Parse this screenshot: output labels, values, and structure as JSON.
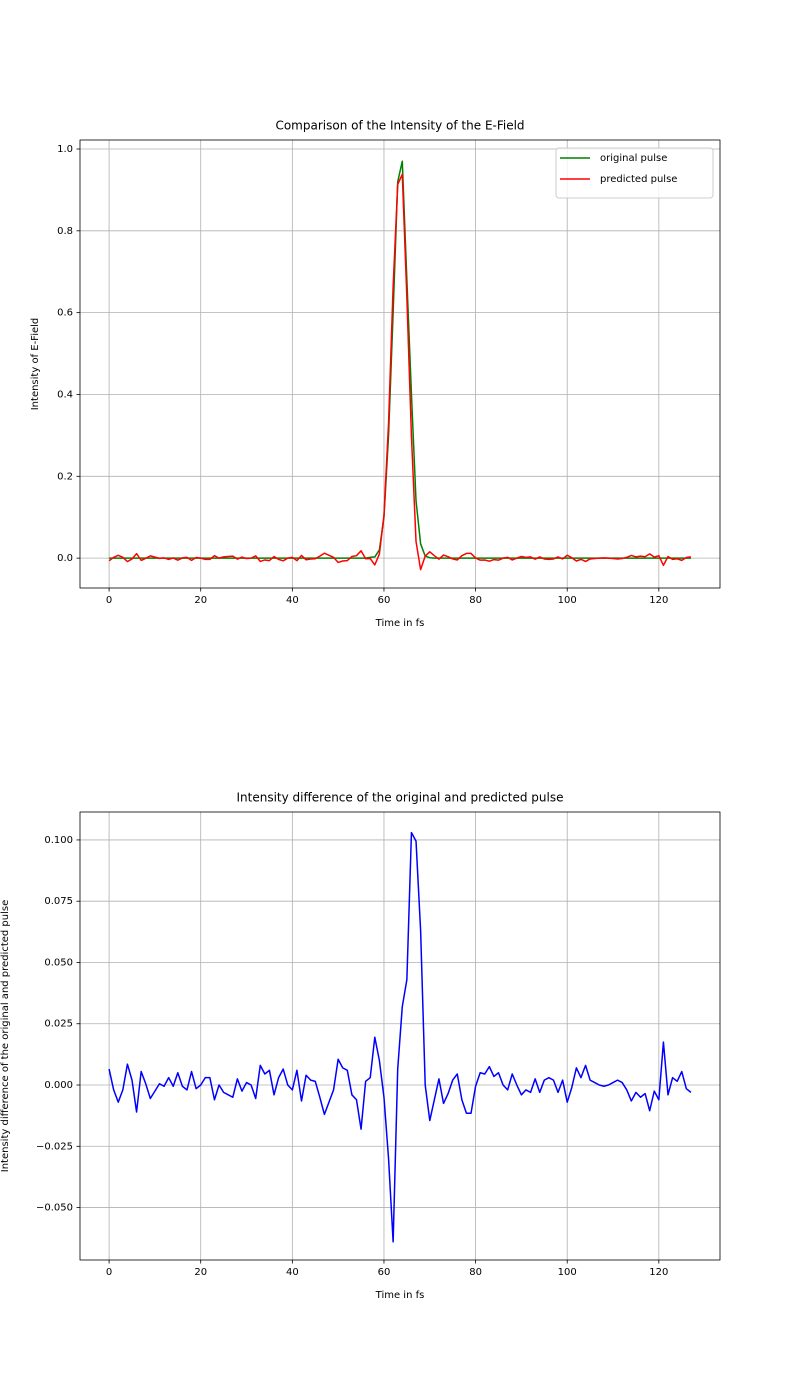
{
  "chart_data": [
    {
      "type": "line",
      "title": "Comparison of the Intensity of the E-Field",
      "xlabel": "Time in fs",
      "ylabel": "Intensity of E-Field",
      "x": [
        0,
        1,
        2,
        3,
        4,
        5,
        6,
        7,
        8,
        9,
        10,
        11,
        12,
        13,
        14,
        15,
        16,
        17,
        18,
        19,
        20,
        21,
        22,
        23,
        24,
        25,
        26,
        27,
        28,
        29,
        30,
        31,
        32,
        33,
        34,
        35,
        36,
        37,
        38,
        39,
        40,
        41,
        42,
        43,
        44,
        45,
        46,
        47,
        48,
        49,
        50,
        51,
        52,
        53,
        54,
        55,
        56,
        57,
        58,
        59,
        60,
        61,
        62,
        63,
        64,
        65,
        66,
        67,
        68,
        69,
        70,
        71,
        72,
        73,
        74,
        75,
        76,
        77,
        78,
        79,
        80,
        81,
        82,
        83,
        84,
        85,
        86,
        87,
        88,
        89,
        90,
        91,
        92,
        93,
        94,
        95,
        96,
        97,
        98,
        99,
        100,
        101,
        102,
        103,
        104,
        105,
        106,
        107,
        108,
        109,
        110,
        111,
        112,
        113,
        114,
        115,
        116,
        117,
        118,
        119,
        120,
        121,
        122,
        123,
        124,
        125,
        126,
        127
      ],
      "series": [
        {
          "name": "original pulse",
          "color": "#008000",
          "values": [
            0,
            0,
            0,
            0,
            0,
            0,
            0,
            0,
            0,
            0,
            0,
            0,
            0,
            0,
            0,
            0,
            0,
            0,
            0,
            0,
            0,
            0,
            0,
            0,
            0,
            0,
            0,
            0,
            0,
            0,
            0,
            0,
            0,
            0,
            0,
            0,
            0,
            0,
            0,
            0,
            0,
            0,
            0,
            0,
            0,
            0,
            0,
            0,
            0,
            0,
            0,
            0,
            0,
            0,
            0,
            0,
            0,
            0.002,
            0.003,
            0.02,
            0.1,
            0.3,
            0.6,
            0.92,
            0.97,
            0.68,
            0.4,
            0.14,
            0.035,
            0.005,
            0.001,
            0,
            0,
            0,
            0,
            0,
            0,
            0,
            0,
            0,
            0,
            0,
            0,
            0,
            0,
            0,
            0,
            0,
            0,
            0,
            0,
            0,
            0,
            0,
            0,
            0,
            0,
            0,
            0,
            0,
            0,
            0,
            0,
            0,
            0,
            0,
            0,
            0,
            0,
            0,
            0,
            0,
            0,
            0,
            0,
            0,
            0,
            0,
            0,
            0,
            0,
            0,
            0,
            0,
            0,
            0,
            0,
            0
          ]
        },
        {
          "name": "predicted pulse",
          "color": "#ff0000",
          "values": [
            -0.0065,
            0.002,
            0.007,
            0.002,
            -0.0085,
            -0.002,
            0.011,
            -0.0055,
            -0.0005,
            0.0055,
            0.0025,
            -0.0005,
            0.0005,
            -0.003,
            0.0005,
            -0.005,
            0.0005,
            0.002,
            -0.0055,
            0.0015,
            0,
            -0.003,
            -0.003,
            0.006,
            0,
            0.003,
            0.004,
            0.005,
            -0.0025,
            0.0025,
            -0.001,
            0,
            0.0055,
            -0.008,
            -0.0045,
            -0.006,
            0.004,
            -0.003,
            -0.0065,
            0,
            0.002,
            -0.006,
            0.0065,
            -0.004,
            -0.002,
            -0.0015,
            0.005,
            0.012,
            0.007,
            0.002,
            -0.0105,
            -0.007,
            -0.006,
            0.004,
            0.006,
            0.018,
            -0.0015,
            -0.001,
            -0.0165,
            0.01,
            0.105,
            0.33,
            0.664,
            0.9135,
            0.938,
            0.637,
            0.297,
            0.0405,
            -0.028,
            0.005,
            0.0155,
            0.006,
            -0.0025,
            0.0075,
            0.0035,
            -0.002,
            -0.0045,
            0.006,
            0.0115,
            0.0115,
            0.0005,
            -0.005,
            -0.0045,
            -0.0075,
            -0.0035,
            -0.005,
            0,
            0.002,
            -0.0045,
            0,
            0.004,
            0.002,
            0.003,
            -0.0025,
            0.003,
            -0.002,
            -0.003,
            -0.002,
            0.003,
            -0.002,
            0.007,
            0.001,
            -0.007,
            -0.003,
            -0.008,
            -0.002,
            -0.001,
            0,
            0.0005,
            0,
            -0.001,
            -0.002,
            -0.001,
            0.002,
            0.0065,
            0.003,
            0.005,
            0.0035,
            0.0105,
            0.0025,
            0.006,
            -0.0175,
            0.004,
            -0.003,
            -0.0015,
            -0.0055,
            0.0015,
            0.003
          ]
        }
      ],
      "xlim": [
        -6.35,
        133.35
      ],
      "ylim": [
        -0.073,
        1.022
      ],
      "xticks": [
        0,
        20,
        40,
        60,
        80,
        100,
        120
      ],
      "yticks": [
        {
          "value": 0,
          "label": "0.0"
        },
        0.2,
        0.4,
        0.6,
        0.8,
        {
          "value": 1,
          "label": "1.0"
        }
      ],
      "grid": true,
      "legend": "upper right"
    },
    {
      "type": "line",
      "title": "Intensity difference of the original and predicted pulse",
      "xlabel": "Time in fs",
      "ylabel": "Intensity difference of the original and predicted pulse",
      "x": [
        0,
        1,
        2,
        3,
        4,
        5,
        6,
        7,
        8,
        9,
        10,
        11,
        12,
        13,
        14,
        15,
        16,
        17,
        18,
        19,
        20,
        21,
        22,
        23,
        24,
        25,
        26,
        27,
        28,
        29,
        30,
        31,
        32,
        33,
        34,
        35,
        36,
        37,
        38,
        39,
        40,
        41,
        42,
        43,
        44,
        45,
        46,
        47,
        48,
        49,
        50,
        51,
        52,
        53,
        54,
        55,
        56,
        57,
        58,
        59,
        60,
        61,
        62,
        63,
        64,
        65,
        66,
        67,
        68,
        69,
        70,
        71,
        72,
        73,
        74,
        75,
        76,
        77,
        78,
        79,
        80,
        81,
        82,
        83,
        84,
        85,
        86,
        87,
        88,
        89,
        90,
        91,
        92,
        93,
        94,
        95,
        96,
        97,
        98,
        99,
        100,
        101,
        102,
        103,
        104,
        105,
        106,
        107,
        108,
        109,
        110,
        111,
        112,
        113,
        114,
        115,
        116,
        117,
        118,
        119,
        120,
        121,
        122,
        123,
        124,
        125,
        126,
        127
      ],
      "series": [
        {
          "color": "#0000ff",
          "values": [
            0.0065,
            -0.002,
            -0.007,
            -0.002,
            0.0085,
            0.002,
            -0.011,
            0.0055,
            0.0005,
            -0.0055,
            -0.0025,
            0.0005,
            -0.0005,
            0.003,
            -0.0005,
            0.005,
            -0.0005,
            -0.002,
            0.0055,
            -0.0015,
            0,
            0.003,
            0.003,
            -0.006,
            0,
            -0.003,
            -0.004,
            -0.005,
            0.0025,
            -0.0025,
            0.001,
            0,
            -0.0055,
            0.008,
            0.0045,
            0.006,
            -0.004,
            0.003,
            0.0065,
            0,
            -0.002,
            0.006,
            -0.0065,
            0.004,
            0.002,
            0.0015,
            -0.005,
            -0.012,
            -0.007,
            -0.002,
            0.0105,
            0.007,
            0.006,
            -0.004,
            -0.006,
            -0.018,
            0.0015,
            0.003,
            0.0195,
            0.01,
            -0.005,
            -0.03,
            -0.064,
            0.0065,
            0.032,
            0.043,
            0.103,
            0.0995,
            0.063,
            0,
            -0.0145,
            -0.006,
            0.0025,
            -0.0075,
            -0.0035,
            0.002,
            0.0045,
            -0.006,
            -0.0115,
            -0.0115,
            -0.0005,
            0.005,
            0.0045,
            0.0075,
            0.0035,
            0.005,
            0,
            -0.002,
            0.0045,
            0,
            -0.004,
            -0.002,
            -0.003,
            0.0025,
            -0.003,
            0.002,
            0.003,
            0.002,
            -0.003,
            0.002,
            -0.007,
            -0.001,
            0.007,
            0.003,
            0.008,
            0.002,
            0.001,
            0,
            -0.0005,
            0,
            0.001,
            0.002,
            0.001,
            -0.002,
            -0.0065,
            -0.003,
            -0.005,
            -0.0035,
            -0.0105,
            -0.0025,
            -0.006,
            0.0175,
            -0.004,
            0.003,
            0.0015,
            0.0055,
            -0.0015,
            -0.003
          ]
        }
      ],
      "xlim": [
        -6.35,
        133.35
      ],
      "ylim": [
        -0.0714,
        0.1114
      ],
      "xticks": [
        0,
        20,
        40,
        60,
        80,
        100,
        120
      ],
      "yticks": [
        {
          "value": -0.05,
          "label": "−0.050"
        },
        {
          "value": -0.025,
          "label": "−0.025"
        },
        {
          "value": 0,
          "label": "0.000"
        },
        {
          "value": 0.025,
          "label": "0.025"
        },
        {
          "value": 0.05,
          "label": "0.050"
        },
        {
          "value": 0.075,
          "label": "0.075"
        },
        {
          "value": 0.1,
          "label": "0.100"
        }
      ],
      "grid": true
    }
  ]
}
